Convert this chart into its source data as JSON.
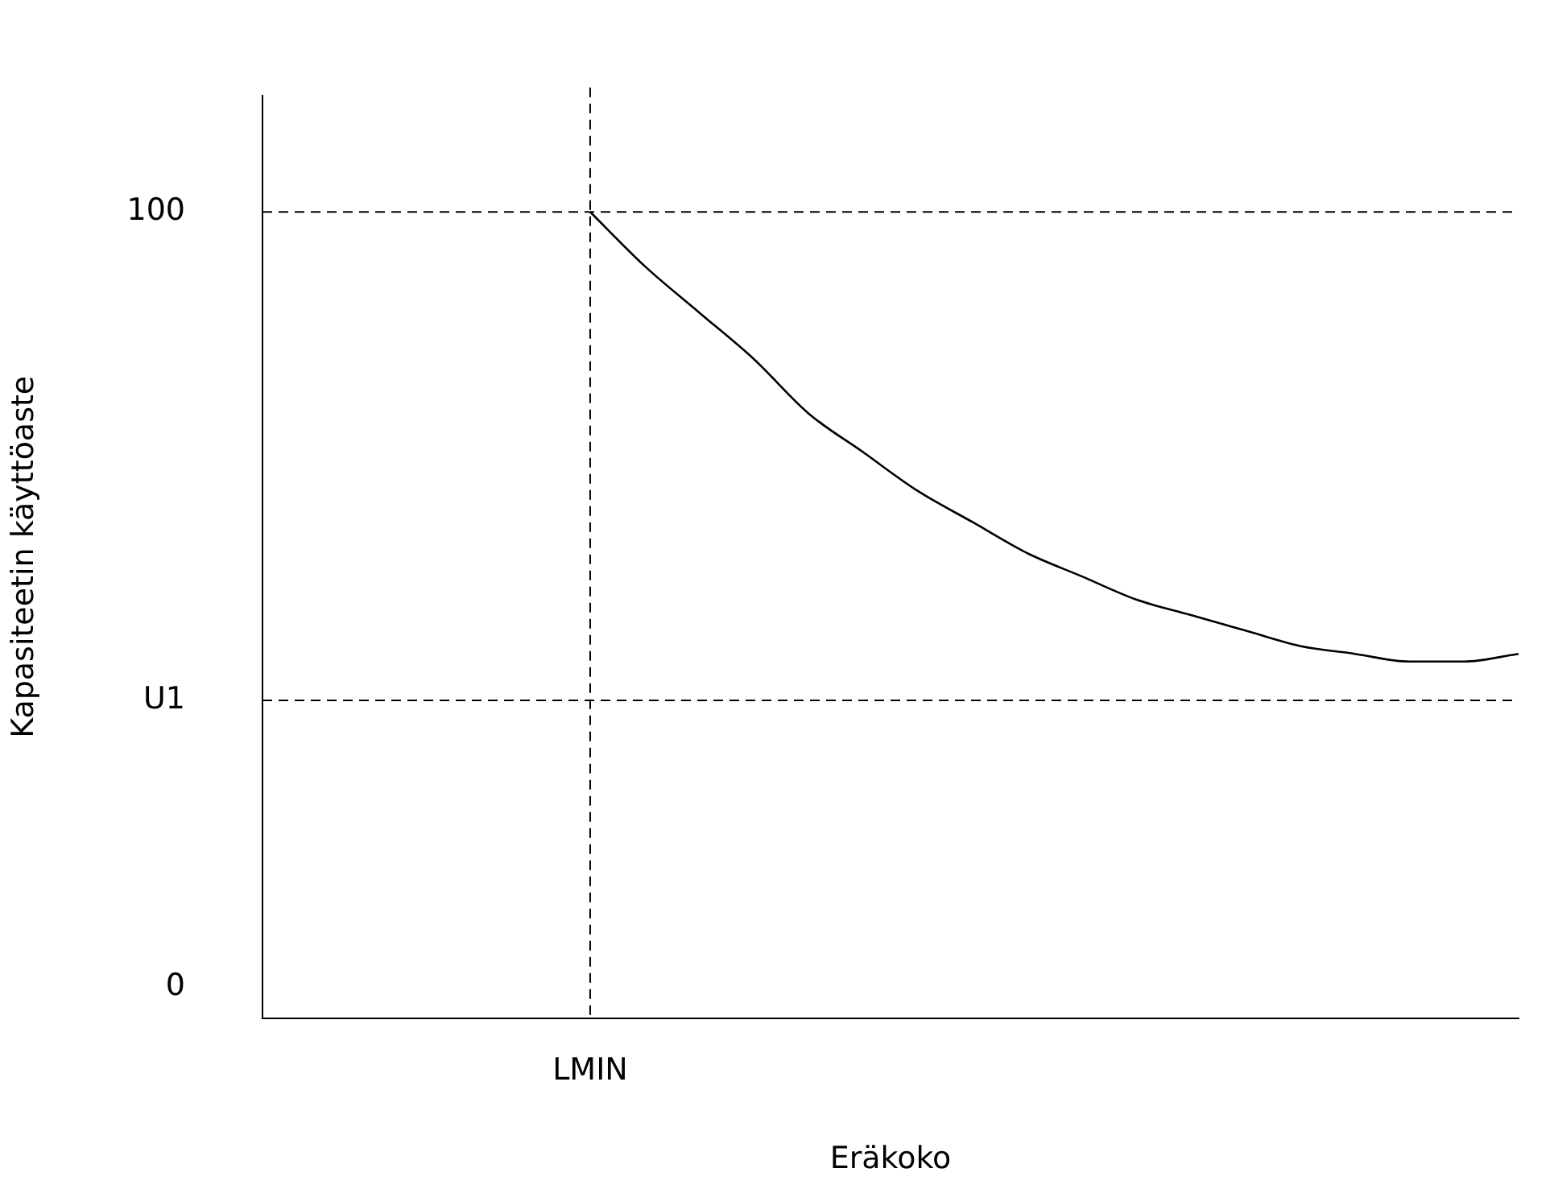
{
  "chart_data": {
    "type": "line",
    "xlabel": "Eräkoko",
    "ylabel": "Kapasiteetin käyttöaste",
    "categories": [
      null,
      null,
      null,
      null,
      null,
      null,
      "LMIN",
      null,
      null,
      null,
      null,
      null,
      null,
      null,
      null,
      null,
      null,
      null,
      null,
      null,
      null,
      null,
      null,
      null
    ],
    "series": [
      {
        "color": "#000000",
        "values": [
          null,
          null,
          null,
          null,
          null,
          null,
          100,
          93,
          87,
          81,
          74,
          69,
          64,
          60,
          56,
          53,
          50,
          48,
          46,
          44,
          43,
          42,
          42,
          43
        ]
      }
    ],
    "ylim": [
      -4,
      115
    ],
    "yticks": [
      0,
      {
        "value": 37,
        "label": "U1"
      },
      100
    ],
    "ref_lines": [
      {
        "axis": "y",
        "value": 100,
        "line_style": "dashed"
      },
      {
        "axis": "y",
        "value": 37,
        "line_style": "dashed"
      },
      {
        "axis": "x",
        "value": "LMIN",
        "line_style": "dashed"
      }
    ],
    "grid": false,
    "legend": false,
    "marker": "none",
    "line_style": "solid"
  }
}
